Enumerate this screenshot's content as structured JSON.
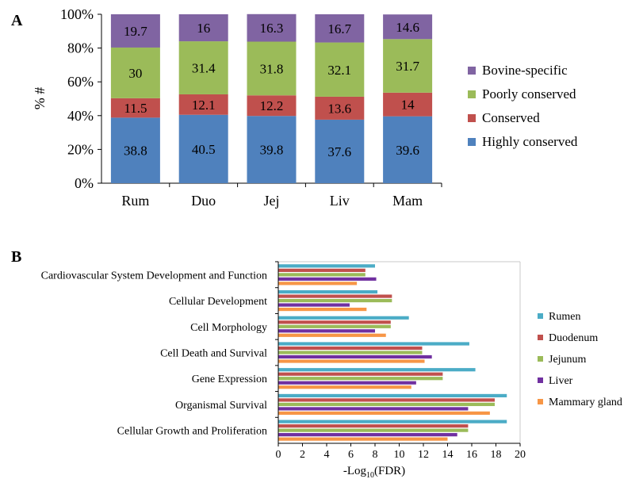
{
  "panels": {
    "a": {
      "letter": "A"
    },
    "b": {
      "letter": "B"
    }
  },
  "chart_data": [
    {
      "type": "bar",
      "stacked": true,
      "orientation": "vertical",
      "ylabel": "% #",
      "categories": [
        "Rum",
        "Duo",
        "Jej",
        "Liv",
        "Mam"
      ],
      "ylim": [
        0,
        100
      ],
      "yticks": [
        "0%",
        "20%",
        "40%",
        "60%",
        "80%",
        "100%"
      ],
      "legend_position": "right",
      "series": [
        {
          "name": "Highly conserved",
          "color": "#4f81bd",
          "values": [
            38.8,
            40.5,
            39.8,
            37.6,
            39.6
          ],
          "labels": [
            "38.8",
            "40.5",
            "39.8",
            "37.6",
            "39.6"
          ]
        },
        {
          "name": "Conserved",
          "color": "#c0504d",
          "values": [
            11.5,
            12.1,
            12.2,
            13.6,
            14
          ],
          "labels": [
            "11.5",
            "12.1",
            "12.2",
            "13.6",
            "14"
          ]
        },
        {
          "name": "Poorly conserved",
          "color": "#9bbb59",
          "values": [
            30,
            31.4,
            31.8,
            32.1,
            31.7
          ],
          "labels": [
            "30",
            "31.4",
            "31.8",
            "32.1",
            "31.7"
          ]
        },
        {
          "name": "Bovine-specific",
          "color": "#8064a2",
          "values": [
            19.7,
            16,
            16.3,
            16.7,
            14.6
          ],
          "labels": [
            "19.7",
            "16",
            "16.3",
            "16.7",
            "14.6"
          ]
        }
      ],
      "legend_order": [
        "Bovine-specific",
        "Poorly conserved",
        "Conserved",
        "Highly conserved"
      ]
    },
    {
      "type": "bar",
      "orientation": "horizontal",
      "xlabel_main": "-Log",
      "xlabel_sub": "10",
      "xlabel_tail": "(FDR)",
      "xlim": [
        0,
        20
      ],
      "xticks": [
        "0",
        "2",
        "4",
        "6",
        "8",
        "10",
        "12",
        "14",
        "16",
        "18",
        "20"
      ],
      "legend_position": "right",
      "categories": [
        "Cardiovascular System Development and Function",
        "Cellular Development",
        "Cell Morphology",
        "Cell Death and Survival",
        "Gene Expression",
        "Organismal Survival",
        "Cellular Growth and Proliferation"
      ],
      "series": [
        {
          "name": "Rumen",
          "color": "#4bacc6",
          "values": [
            8.0,
            8.2,
            10.8,
            15.8,
            16.3,
            18.9,
            18.9
          ]
        },
        {
          "name": "Duodenum",
          "color": "#c0504d",
          "values": [
            7.2,
            9.4,
            9.3,
            11.9,
            13.6,
            17.9,
            15.7
          ]
        },
        {
          "name": "Jejunum",
          "color": "#9bbb59",
          "values": [
            7.2,
            9.4,
            9.3,
            11.9,
            13.6,
            17.9,
            15.7
          ]
        },
        {
          "name": "Liver",
          "color": "#7030a0",
          "values": [
            8.1,
            5.9,
            8.0,
            12.7,
            11.4,
            15.7,
            14.8
          ]
        },
        {
          "name": "Mammary gland",
          "color": "#f79646",
          "values": [
            6.5,
            7.3,
            8.9,
            12.1,
            11.0,
            17.5,
            14.0
          ]
        }
      ]
    }
  ]
}
